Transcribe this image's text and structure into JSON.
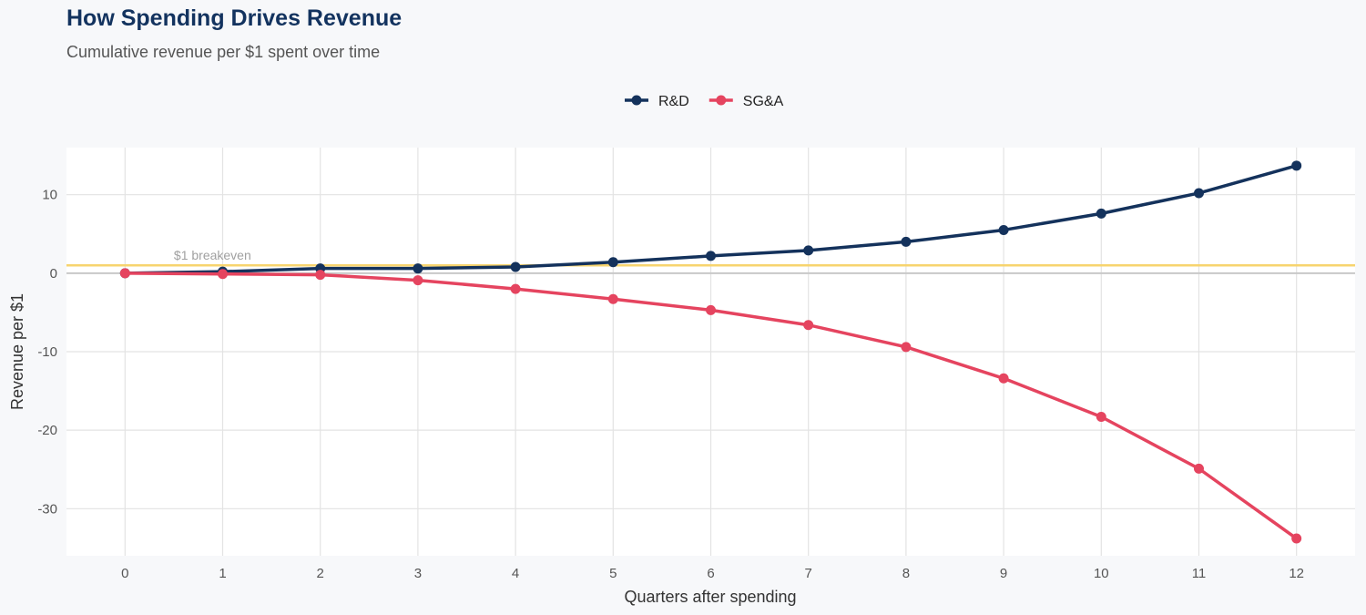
{
  "title": "How Spending Drives Revenue",
  "subtitle": "Cumulative revenue per $1 spent over time",
  "chart_data": {
    "type": "line",
    "xlabel": "Quarters after spending",
    "ylabel": "Revenue per $1",
    "x": [
      0,
      1,
      2,
      3,
      4,
      5,
      6,
      7,
      8,
      9,
      10,
      11,
      12
    ],
    "xlim": [
      -0.6,
      12.6
    ],
    "ylim": [
      -36,
      16
    ],
    "xticks": [
      0,
      1,
      2,
      3,
      4,
      5,
      6,
      7,
      8,
      9,
      10,
      11,
      12
    ],
    "yticks": [
      -30,
      -20,
      -10,
      0,
      10
    ],
    "grid": true,
    "legend_position": "top",
    "series": [
      {
        "name": "R&D",
        "color": "#14325c",
        "values": [
          0.0,
          0.2,
          0.6,
          0.6,
          0.8,
          1.4,
          2.2,
          2.9,
          4.0,
          5.5,
          7.6,
          10.2,
          13.7
        ]
      },
      {
        "name": "SG&A",
        "color": "#e5445f",
        "values": [
          0.0,
          -0.1,
          -0.2,
          -0.9,
          -2.0,
          -3.3,
          -4.7,
          -6.6,
          -9.4,
          -13.4,
          -18.3,
          -24.9,
          -33.8
        ]
      }
    ],
    "reference_line": {
      "y": 1,
      "label": "$1 breakeven",
      "color": "#f7d46e"
    },
    "zero_line_color": "#c8c8c8"
  }
}
